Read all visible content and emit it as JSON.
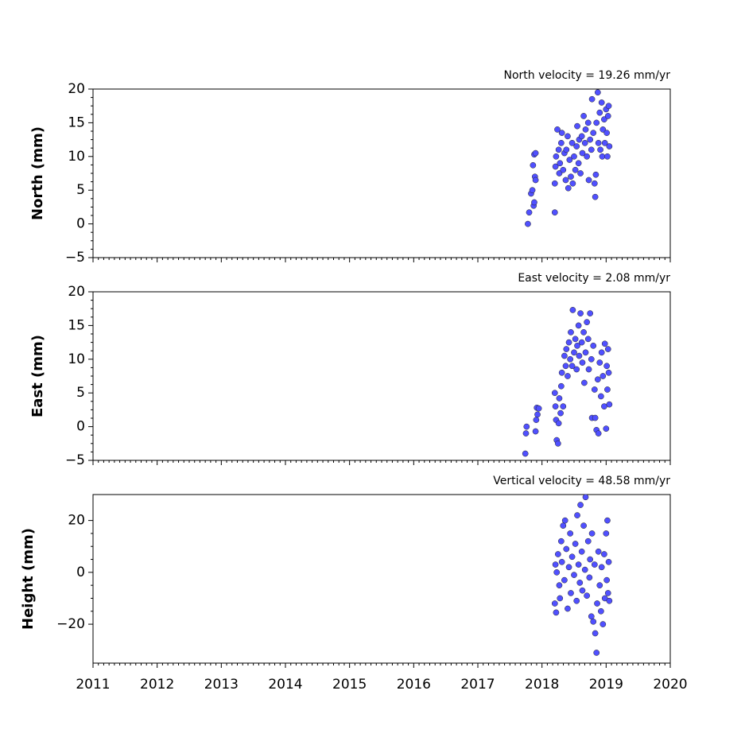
{
  "chart_data": [
    {
      "type": "scatter",
      "title": "North velocity = 19.26 mm/yr",
      "ylabel": "North (mm)",
      "color": "#5050ff",
      "xlim": [
        2011,
        2020
      ],
      "xticks": [
        2011,
        2012,
        2013,
        2014,
        2015,
        2016,
        2017,
        2018,
        2019,
        2020
      ],
      "ylim": [
        -5,
        20
      ],
      "yticks": [
        {
          "value": -5,
          "label": "−5"
        },
        0,
        5,
        10,
        15,
        20
      ],
      "x": [
        2017.78,
        2017.8,
        2017.83,
        2017.85,
        2017.87,
        2017.88,
        2017.86,
        2017.88,
        2017.9,
        2017.89,
        2017.9,
        2018.2,
        2018.2,
        2018.21,
        2018.22,
        2018.24,
        2018.26,
        2018.27,
        2018.28,
        2018.3,
        2018.31,
        2018.33,
        2018.35,
        2018.37,
        2018.38,
        2018.4,
        2018.41,
        2018.43,
        2018.45,
        2018.47,
        2018.48,
        2018.5,
        2018.52,
        2018.54,
        2018.55,
        2018.57,
        2018.58,
        2018.6,
        2018.62,
        2018.63,
        2018.65,
        2018.67,
        2018.68,
        2018.7,
        2018.72,
        2018.73,
        2018.75,
        2018.77,
        2018.78,
        2018.8,
        2018.82,
        2018.83,
        2018.84,
        2018.85,
        2018.87,
        2018.88,
        2018.9,
        2018.91,
        2018.93,
        2018.94,
        2018.95,
        2018.97,
        2018.98,
        2019.0,
        2019.01,
        2019.02,
        2019.03,
        2019.04,
        2019.05
      ],
      "values": [
        0,
        1.7,
        4.5,
        5,
        2.7,
        3.2,
        8.7,
        10.3,
        10.5,
        7,
        6.5,
        1.7,
        6,
        8.5,
        10,
        14,
        11,
        7.5,
        9,
        12,
        13.5,
        8,
        10.5,
        6.5,
        11,
        13,
        5.3,
        9.5,
        7,
        12,
        6,
        10,
        8,
        11.5,
        14.5,
        9,
        12.5,
        7.5,
        13,
        10.5,
        16,
        12,
        14,
        10,
        15,
        6.5,
        12.5,
        11,
        18.5,
        13.5,
        6,
        4,
        7.3,
        15,
        19.5,
        12,
        16.5,
        11,
        18,
        10,
        14,
        15.5,
        12,
        17,
        13.5,
        10,
        16,
        17.5,
        11.5
      ]
    },
    {
      "type": "scatter",
      "title": "East velocity = 2.08 mm/yr",
      "ylabel": "East (mm)",
      "color": "#5050ff",
      "xlim": [
        2011,
        2020
      ],
      "xticks": [
        2011,
        2012,
        2013,
        2014,
        2015,
        2016,
        2017,
        2018,
        2019,
        2020
      ],
      "ylim": [
        -5,
        20
      ],
      "yticks": [
        {
          "value": -5,
          "label": "−5"
        },
        0,
        5,
        10,
        15,
        20
      ],
      "x": [
        2017.74,
        2017.75,
        2017.76,
        2017.9,
        2017.91,
        2017.92,
        2017.95,
        2017.93,
        2018.2,
        2018.21,
        2018.22,
        2018.23,
        2018.25,
        2018.26,
        2018.27,
        2018.29,
        2018.3,
        2018.31,
        2018.33,
        2018.35,
        2018.37,
        2018.38,
        2018.4,
        2018.42,
        2018.44,
        2018.45,
        2018.47,
        2018.48,
        2018.5,
        2018.52,
        2018.54,
        2018.55,
        2018.57,
        2018.58,
        2018.6,
        2018.62,
        2018.63,
        2018.65,
        2018.66,
        2018.68,
        2018.7,
        2018.72,
        2018.73,
        2018.75,
        2018.77,
        2018.78,
        2018.8,
        2018.82,
        2018.83,
        2018.85,
        2018.87,
        2018.88,
        2018.9,
        2018.92,
        2018.93,
        2018.95,
        2018.97,
        2018.98,
        2019.0,
        2019.01,
        2019.02,
        2019.03,
        2019.04,
        2019.05
      ],
      "values": [
        -4,
        -1,
        0,
        -0.7,
        1,
        2.8,
        2.7,
        1.8,
        5,
        3,
        1,
        -2,
        -2.5,
        0.5,
        4.2,
        2,
        6,
        8,
        3,
        10.5,
        9,
        11.5,
        7.5,
        12.5,
        10,
        14,
        9,
        17.3,
        11,
        13,
        8.5,
        12,
        15,
        10.5,
        16.8,
        12.5,
        9.5,
        14,
        6.5,
        11,
        15.5,
        13,
        8.5,
        16.8,
        10,
        1.3,
        12,
        5.5,
        1.3,
        -0.5,
        7,
        -1,
        9.5,
        4.5,
        11,
        7.5,
        3,
        12.3,
        -0.3,
        9,
        5.5,
        11.5,
        8,
        3.3
      ]
    },
    {
      "type": "scatter",
      "title": "Vertical velocity = 48.58 mm/yr",
      "ylabel": "Height (mm)",
      "color": "#5050ff",
      "xlim": [
        2011,
        2020
      ],
      "xticks": [
        2011,
        2012,
        2013,
        2014,
        2015,
        2016,
        2017,
        2018,
        2019,
        2020
      ],
      "ylim": [
        -35,
        30
      ],
      "yticks": [
        {
          "value": -20,
          "label": "−20"
        },
        0,
        20
      ],
      "x": [
        2018.2,
        2018.21,
        2018.22,
        2018.23,
        2018.25,
        2018.27,
        2018.28,
        2018.3,
        2018.31,
        2018.33,
        2018.35,
        2018.36,
        2018.38,
        2018.4,
        2018.42,
        2018.44,
        2018.45,
        2018.47,
        2018.5,
        2018.52,
        2018.54,
        2018.55,
        2018.57,
        2018.59,
        2018.6,
        2018.62,
        2018.63,
        2018.65,
        2018.67,
        2018.68,
        2018.7,
        2018.72,
        2018.74,
        2018.75,
        2018.77,
        2018.78,
        2018.8,
        2018.82,
        2018.83,
        2018.85,
        2018.86,
        2018.88,
        2018.9,
        2018.92,
        2018.93,
        2018.95,
        2018.97,
        2018.98,
        2019.0,
        2019.01,
        2019.02,
        2019.03,
        2019.04,
        2019.05
      ],
      "values": [
        -12,
        3,
        -15.5,
        0,
        7,
        -5,
        -10,
        12,
        4,
        18,
        -3,
        20,
        9,
        -14,
        2,
        15,
        -8,
        6,
        -1,
        11,
        -11,
        22,
        3,
        -4,
        26,
        8,
        -7,
        18,
        1,
        29,
        -9,
        12,
        -2,
        5,
        -17,
        15,
        -19,
        3,
        -23.5,
        -31,
        -12,
        8,
        -5,
        -15,
        2,
        -20,
        7,
        -10,
        15,
        -3,
        20,
        -8,
        4,
        -11
      ]
    }
  ]
}
